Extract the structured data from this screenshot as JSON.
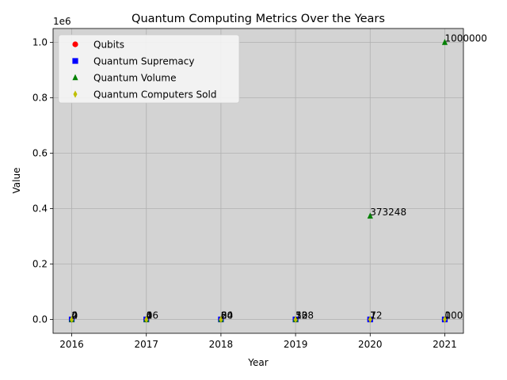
{
  "chart_data": {
    "type": "scatter",
    "title": "Quantum Computing Metrics Over the Years",
    "xlabel": "Year",
    "ylabel": "Value",
    "y_offset_label": "1e6",
    "xlim": [
      2015.75,
      2021.25
    ],
    "ylim": [
      -50000,
      1050000
    ],
    "x_ticks": [
      2016,
      2017,
      2018,
      2019,
      2020,
      2021
    ],
    "y_ticks": [
      0.0,
      0.2,
      0.4,
      0.6,
      0.8,
      1.0
    ],
    "y_tick_scale": 1000000,
    "grid": true,
    "plot_background": "#d3d3d3",
    "legend_position": "upper-left",
    "x": [
      2016,
      2017,
      2018,
      2019,
      2020,
      2021
    ],
    "series": [
      {
        "name": "Qubits",
        "marker": "circle",
        "color": "#ff0000",
        "values": [
          2,
          4,
          8,
          53,
          72,
          100
        ]
      },
      {
        "name": "Quantum Supremacy",
        "marker": "square",
        "color": "#0000ff",
        "values": [
          0,
          0,
          0,
          1,
          1,
          1
        ]
      },
      {
        "name": "Quantum Volume",
        "marker": "triangle",
        "color": "#008000",
        "values": [
          4,
          16,
          64,
          128,
          373248,
          1000000
        ]
      },
      {
        "name": "Quantum Computers Sold",
        "marker": "diamond",
        "color": "#bfbf00",
        "values": [
          0,
          0,
          20,
          30,
          7,
          0
        ]
      }
    ],
    "data_labels": [
      {
        "x": 2016,
        "y": 2,
        "text": "2"
      },
      {
        "x": 2016,
        "y": 0,
        "text": "0"
      },
      {
        "x": 2016,
        "y": 4,
        "text": "4"
      },
      {
        "x": 2016,
        "y": 0,
        "text": "0"
      },
      {
        "x": 2017,
        "y": 4,
        "text": "4"
      },
      {
        "x": 2017,
        "y": 0,
        "text": "0"
      },
      {
        "x": 2017,
        "y": 16,
        "text": "16"
      },
      {
        "x": 2017,
        "y": 0,
        "text": "0"
      },
      {
        "x": 2018,
        "y": 8,
        "text": "8"
      },
      {
        "x": 2018,
        "y": 0,
        "text": "0"
      },
      {
        "x": 2018,
        "y": 64,
        "text": "64"
      },
      {
        "x": 2018,
        "y": 20,
        "text": "20"
      },
      {
        "x": 2019,
        "y": 53,
        "text": "53"
      },
      {
        "x": 2019,
        "y": 1,
        "text": "1"
      },
      {
        "x": 2019,
        "y": 128,
        "text": "128"
      },
      {
        "x": 2019,
        "y": 30,
        "text": "30"
      },
      {
        "x": 2020,
        "y": 72,
        "text": "72"
      },
      {
        "x": 2020,
        "y": 1,
        "text": "1"
      },
      {
        "x": 2020,
        "y": 373248,
        "text": "373248"
      },
      {
        "x": 2020,
        "y": 7,
        "text": "7"
      },
      {
        "x": 2021,
        "y": 100,
        "text": "100"
      },
      {
        "x": 2021,
        "y": 1,
        "text": "1"
      },
      {
        "x": 2021,
        "y": 1000000,
        "text": "1000000"
      },
      {
        "x": 2021,
        "y": 0,
        "text": "0"
      }
    ]
  }
}
